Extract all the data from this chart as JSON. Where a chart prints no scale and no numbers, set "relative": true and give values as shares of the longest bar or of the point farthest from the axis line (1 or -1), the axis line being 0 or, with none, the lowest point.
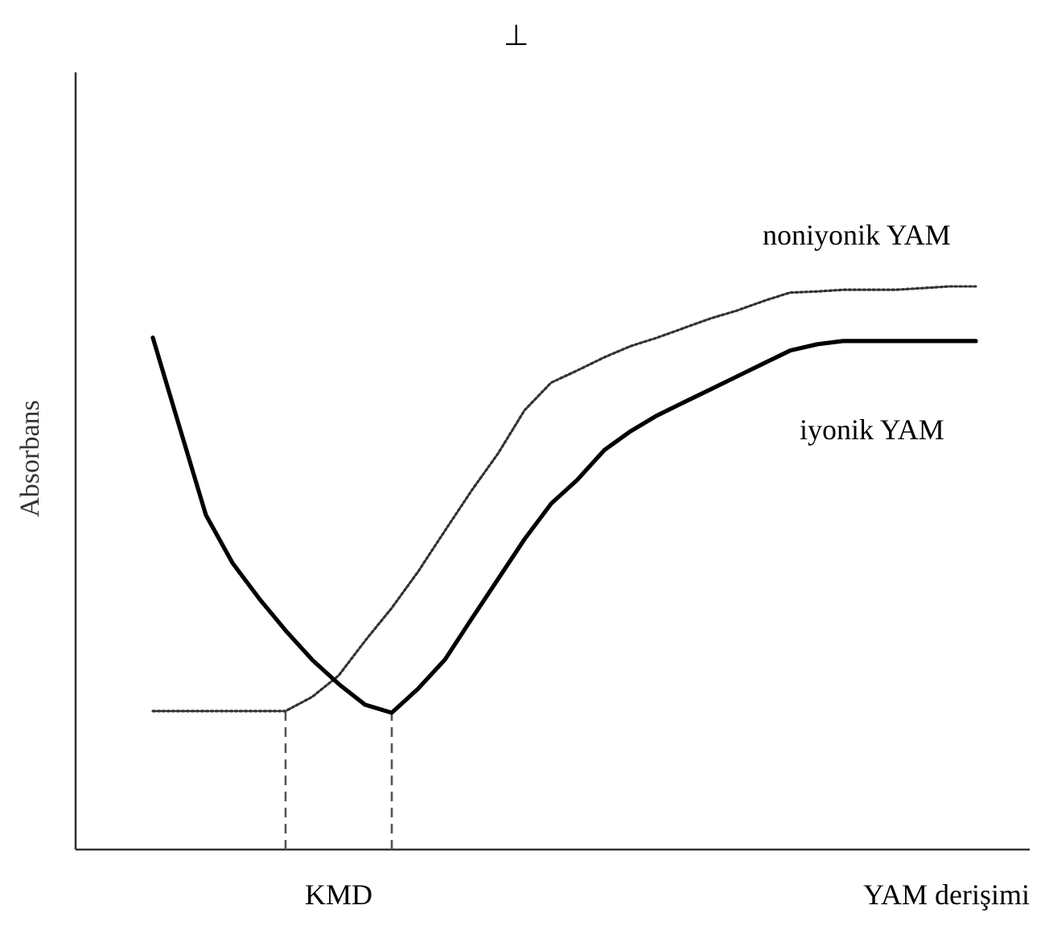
{
  "chart_data": {
    "type": "line",
    "relative": true,
    "xlabel": "YAM derişimi",
    "ylabel": "Absorbans",
    "categories": [
      null,
      null,
      null,
      null,
      null,
      null,
      null,
      null,
      null,
      null,
      null,
      null,
      null,
      null,
      null,
      null,
      null,
      null,
      null,
      null,
      null,
      null,
      null,
      null,
      null,
      null,
      null,
      null,
      null,
      null,
      null,
      null
    ],
    "series": [
      {
        "name": "noniyonik YAM",
        "color": "#333333",
        "line_style": "dotted",
        "values": [
          0.246,
          0.246,
          0.246,
          0.246,
          0.246,
          0.246,
          0.271,
          0.309,
          0.371,
          0.429,
          0.494,
          0.566,
          0.637,
          0.703,
          0.78,
          0.829,
          0.851,
          0.874,
          0.894,
          0.909,
          0.926,
          0.943,
          0.957,
          0.974,
          0.989,
          0.991,
          0.994,
          0.994,
          0.994,
          0.997,
          1,
          1
        ]
      },
      {
        "name": "iyonik YAM",
        "color": "#000000",
        "line_style": "solid",
        "values": [
          0.909,
          0.751,
          0.594,
          0.509,
          0.446,
          0.389,
          0.337,
          0.294,
          0.257,
          0.243,
          0.286,
          0.337,
          0.409,
          0.48,
          0.551,
          0.614,
          0.657,
          0.709,
          0.743,
          0.771,
          0.794,
          0.817,
          0.84,
          0.863,
          0.886,
          0.897,
          0.903,
          0.903,
          0.903,
          0.903,
          0.903,
          0.903
        ]
      }
    ],
    "annotations": [
      "KMD",
      "⊥"
    ]
  }
}
